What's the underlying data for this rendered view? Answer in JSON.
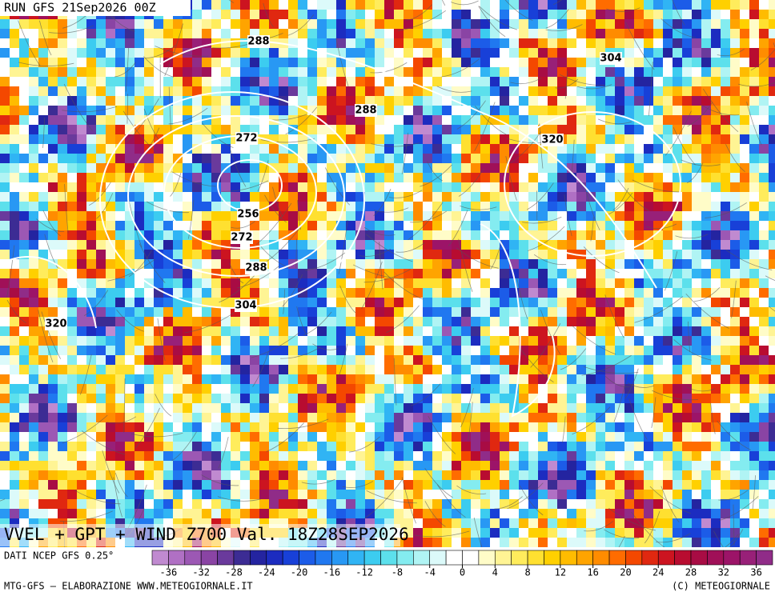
{
  "header": {
    "run": "RUN GFS 21Sep2026 00Z"
  },
  "map": {
    "title": "VVEL + GPT + WIND Z700 Val. 18Z28SEP2026",
    "contour_labels": [
      288,
      304,
      288,
      272,
      320,
      256,
      272,
      288,
      304,
      320
    ]
  },
  "colorbar": {
    "source": "DATI NCEP GFS 0.25°",
    "lim": [
      -38,
      38
    ],
    "ticks": [
      -36,
      -32,
      -28,
      -24,
      -20,
      -16,
      -12,
      -8,
      -4,
      0,
      4,
      8,
      12,
      16,
      20,
      24,
      28,
      32,
      36
    ],
    "colors": [
      "#c08ad0",
      "#b070c4",
      "#9c58b4",
      "#8a44a4",
      "#6a3a9c",
      "#3c2c94",
      "#2424a0",
      "#1c2cc0",
      "#1840d8",
      "#1c5ce8",
      "#2078f0",
      "#2898f4",
      "#30b4f4",
      "#3cccf0",
      "#5ce0ec",
      "#84ecf0",
      "#b0f4f4",
      "#dcfafa",
      "#ffffff",
      "#ffffff",
      "#fffcc8",
      "#fff494",
      "#ffec5c",
      "#ffe030",
      "#ffd000",
      "#ffbc00",
      "#ffa400",
      "#ff8c00",
      "#ff6c00",
      "#f44800",
      "#e02810",
      "#cc1420",
      "#b80c30",
      "#a80c44",
      "#a01058",
      "#9c1468",
      "#982078",
      "#902c88"
    ]
  },
  "footer": {
    "left": "MTG-GFS – ELABORAZIONE WWW.METEOGIORNALE.IT",
    "right": "(C) METEOGIORNALE"
  }
}
